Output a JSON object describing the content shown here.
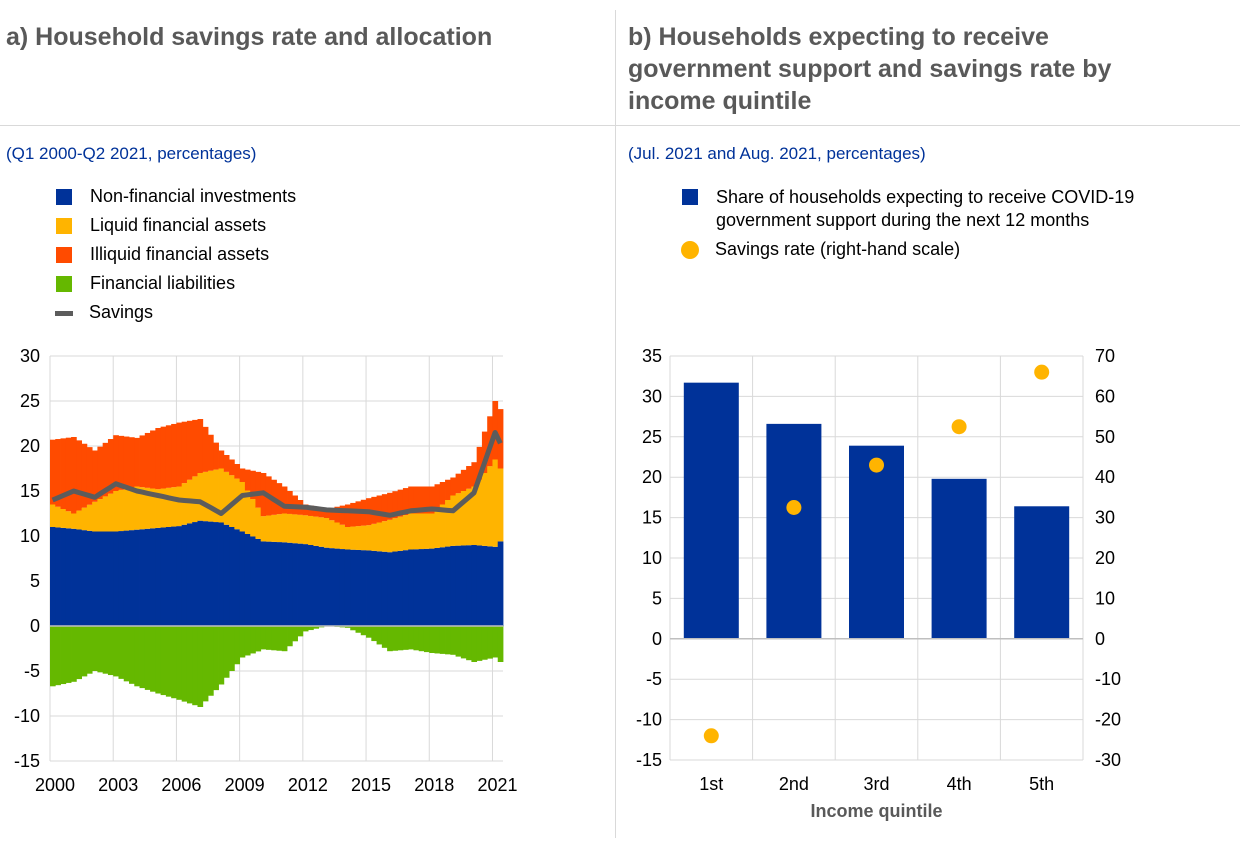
{
  "colors": {
    "non_financial": "#003299",
    "liquid": "#ffb400",
    "illiquid": "#ff4b00",
    "liabilities": "#65b800",
    "savings": "#5c5c5c",
    "grid": "#d9d9d9"
  },
  "panel_a": {
    "title": "a) Household savings rate and allocation",
    "subtitle": "(Q1 2000-Q2 2021, percentages)",
    "legend": [
      "Non-financial investments",
      "Liquid financial assets",
      "Illiquid financial assets",
      "Financial liabilities",
      "Savings"
    ]
  },
  "panel_b": {
    "title_lines": [
      "b) Households expecting to receive",
      "government support and savings rate by",
      "income quintile"
    ],
    "subtitle": "(Jul. 2021 and Aug. 2021, percentages)",
    "legend": [
      "Share of households expecting to receive COVID-19",
      "government support during the next 12 months",
      "Savings rate (right-hand scale)"
    ]
  },
  "chart_data": [
    {
      "type": "area",
      "title": "Household savings rate and allocation",
      "ylim": [
        -15,
        30
      ],
      "xlim": [
        2000,
        2021.5
      ],
      "yticks": [
        "30",
        "25",
        "20",
        "15",
        "10",
        "5",
        "0",
        "-5",
        "-10",
        "-15"
      ],
      "xticks": [
        "2000",
        "2003",
        "2006",
        "2009",
        "2012",
        "2015",
        "2018",
        "2021"
      ],
      "x": [
        2000,
        2001,
        2002,
        2003,
        2004,
        2005,
        2006,
        2007,
        2008,
        2009,
        2010,
        2011,
        2012,
        2013,
        2014,
        2015,
        2016,
        2017,
        2018,
        2019,
        2020,
        2021,
        2021.25
      ],
      "series": [
        {
          "name": "Non-financial investments",
          "values": [
            11,
            10.8,
            10.5,
            10.5,
            10.7,
            10.9,
            11.1,
            11.7,
            11.5,
            10.5,
            9.4,
            9.3,
            9.1,
            8.7,
            8.5,
            8.4,
            8.2,
            8.5,
            8.6,
            8.9,
            9.0,
            8.8,
            9.4
          ]
        },
        {
          "name": "Liquid financial assets",
          "values": [
            2.5,
            1.7,
            3.3,
            4.5,
            4.8,
            4.3,
            4.4,
            5.3,
            6.0,
            5.5,
            2.8,
            3.2,
            3.2,
            3.3,
            2.5,
            2.8,
            3.6,
            4.0,
            3.9,
            5.6,
            6.5,
            9.7,
            8.1
          ]
        },
        {
          "name": "Illiquid financial assets",
          "values": [
            7.2,
            8.5,
            5.7,
            6.2,
            5.4,
            6.8,
            7.1,
            6.0,
            2.0,
            1.5,
            4.8,
            3.0,
            1.2,
            1.0,
            2.5,
            3.0,
            3.0,
            3.0,
            3.0,
            2.0,
            2.7,
            6.5,
            6.6
          ]
        },
        {
          "name": "Financial liabilities",
          "values": [
            -6.7,
            -6.2,
            -5,
            -5.6,
            -6.7,
            -7.5,
            -8.2,
            -9,
            -6.5,
            -3.5,
            -2.6,
            -2.8,
            -0.6,
            0,
            -0.2,
            -1.3,
            -2.8,
            -2.6,
            -3,
            -3.2,
            -4,
            -3.5,
            -4
          ]
        },
        {
          "name": "Savings",
          "type": "line",
          "values": [
            14,
            15,
            14.3,
            15.8,
            15,
            14.5,
            14,
            13.8,
            12.5,
            14.5,
            14.8,
            13.3,
            13.2,
            12.9,
            12.8,
            12.7,
            12.3,
            12.8,
            13,
            12.8,
            14.8,
            21.5,
            20.3
          ]
        }
      ]
    },
    {
      "type": "bar",
      "title": "Households expecting to receive government support and savings rate by income quintile",
      "xlabel": "Income quintile",
      "categories": [
        "1st",
        "2nd",
        "3rd",
        "4th",
        "5th"
      ],
      "ylim": [
        -15,
        35
      ],
      "y2lim": [
        -30,
        70
      ],
      "yticks": [
        "35",
        "30",
        "25",
        "20",
        "15",
        "10",
        "5",
        "0",
        "-5",
        "-10",
        "-15"
      ],
      "y2ticks": [
        "70",
        "60",
        "50",
        "40",
        "30",
        "20",
        "10",
        "0",
        "-10",
        "-20",
        "-30"
      ],
      "series": [
        {
          "name": "Share of households expecting to receive COVID-19 government support during the next 12 months",
          "values": [
            31.7,
            26.6,
            23.9,
            19.8,
            16.4
          ]
        },
        {
          "name": "Savings rate (right-hand scale)",
          "type": "scatter",
          "axis": "right",
          "values": [
            -24,
            32.5,
            43,
            52.5,
            66
          ]
        }
      ]
    }
  ]
}
